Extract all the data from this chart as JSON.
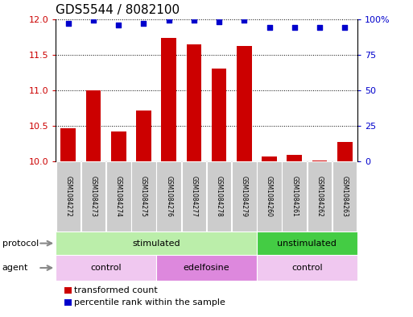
{
  "title": "GDS5544 / 8082100",
  "samples": [
    "GSM1084272",
    "GSM1084273",
    "GSM1084274",
    "GSM1084275",
    "GSM1084276",
    "GSM1084277",
    "GSM1084278",
    "GSM1084279",
    "GSM1084260",
    "GSM1084261",
    "GSM1084262",
    "GSM1084263"
  ],
  "bar_values": [
    10.47,
    11.0,
    10.42,
    10.72,
    11.73,
    11.65,
    11.31,
    11.62,
    10.07,
    10.09,
    10.02,
    10.28
  ],
  "percentile_values": [
    97,
    99,
    96,
    97,
    99,
    99,
    98,
    99,
    94,
    94,
    94,
    94
  ],
  "ylim_left": [
    10.0,
    12.0
  ],
  "ylim_right": [
    0,
    100
  ],
  "yticks_left": [
    10.0,
    10.5,
    11.0,
    11.5,
    12.0
  ],
  "yticks_right": [
    0,
    25,
    50,
    75,
    100
  ],
  "bar_color": "#cc0000",
  "dot_color": "#0000cc",
  "protocol_groups": [
    {
      "label": "stimulated",
      "start": 0,
      "end": 8,
      "color": "#bbeeaa"
    },
    {
      "label": "unstimulated",
      "start": 8,
      "end": 12,
      "color": "#44cc44"
    }
  ],
  "agent_groups": [
    {
      "label": "control",
      "start": 0,
      "end": 4,
      "color": "#f0c8f0"
    },
    {
      "label": "edelfosine",
      "start": 4,
      "end": 8,
      "color": "#dd88dd"
    },
    {
      "label": "control",
      "start": 8,
      "end": 12,
      "color": "#f0c8f0"
    }
  ],
  "legend_items": [
    {
      "label": "transformed count",
      "color": "#cc0000"
    },
    {
      "label": "percentile rank within the sample",
      "color": "#0000cc"
    }
  ],
  "protocol_label": "protocol",
  "agent_label": "agent",
  "bg_color": "#ffffff",
  "sample_bg_color": "#cccccc",
  "bar_base": 10.0,
  "title_fontsize": 11,
  "tick_fontsize": 8,
  "sample_fontsize": 5.5,
  "row_fontsize": 8,
  "legend_fontsize": 8
}
